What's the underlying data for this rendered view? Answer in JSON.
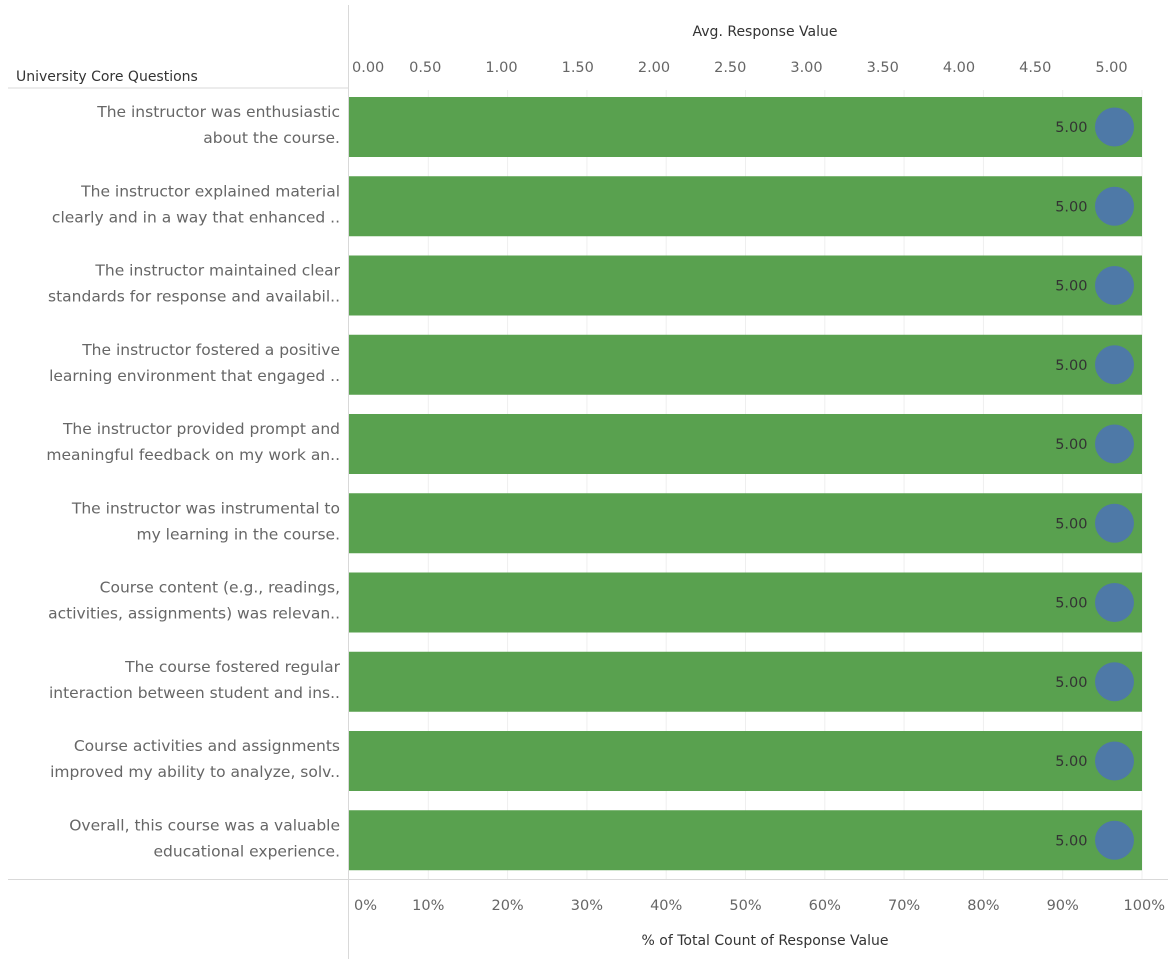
{
  "chart_data": {
    "type": "bar",
    "row_header": "University Core Questions",
    "top_axis": {
      "label": "Avg. Response Value",
      "range": [
        0,
        5.2
      ],
      "ticks": [
        "0.00",
        "0.50",
        "1.00",
        "1.50",
        "2.00",
        "2.50",
        "3.00",
        "3.50",
        "4.00",
        "4.50",
        "5.00"
      ],
      "tick_values": [
        0,
        0.5,
        1,
        1.5,
        2,
        2.5,
        3,
        3.5,
        4,
        4.5,
        5
      ]
    },
    "bottom_axis": {
      "label": "% of Total Count of Response Value",
      "range": [
        0,
        100
      ],
      "ticks": [
        "0%",
        "10%",
        "20%",
        "30%",
        "40%",
        "50%",
        "60%",
        "70%",
        "80%",
        "90%",
        "100%"
      ],
      "tick_values": [
        0,
        10,
        20,
        30,
        40,
        50,
        60,
        70,
        80,
        90,
        100
      ]
    },
    "grid": true,
    "categories": [
      [
        "The instructor was enthusiastic",
        "about the course."
      ],
      [
        "The instructor explained material",
        "clearly and in a way that enhanced .."
      ],
      [
        "The instructor maintained clear",
        "standards for response and availabil.."
      ],
      [
        "The instructor fostered a positive",
        "learning environment that engaged .."
      ],
      [
        "The instructor provided prompt and",
        "meaningful feedback on my work an.."
      ],
      [
        "The instructor was instrumental to",
        "my learning in the course."
      ],
      [
        "Course content (e.g., readings,",
        "activities, assignments) was relevan.."
      ],
      [
        "The course fostered regular",
        "interaction between student and ins.."
      ],
      [
        "Course activities and assignments",
        "improved my ability to analyze, solv.."
      ],
      [
        "Overall, this course was a valuable",
        "educational experience."
      ]
    ],
    "series": [
      {
        "values": [
          100,
          100,
          100,
          100,
          100,
          100,
          100,
          100,
          100,
          100
        ],
        "color": "#59a14f"
      },
      {
        "values": [
          5,
          5,
          5,
          5,
          5,
          5,
          5,
          5,
          5,
          5
        ],
        "color": "#4e79a7"
      }
    ],
    "value_labels": [
      "5.00",
      "5.00",
      "5.00",
      "5.00",
      "5.00",
      "5.00",
      "5.00",
      "5.00",
      "5.00",
      "5.00"
    ]
  }
}
